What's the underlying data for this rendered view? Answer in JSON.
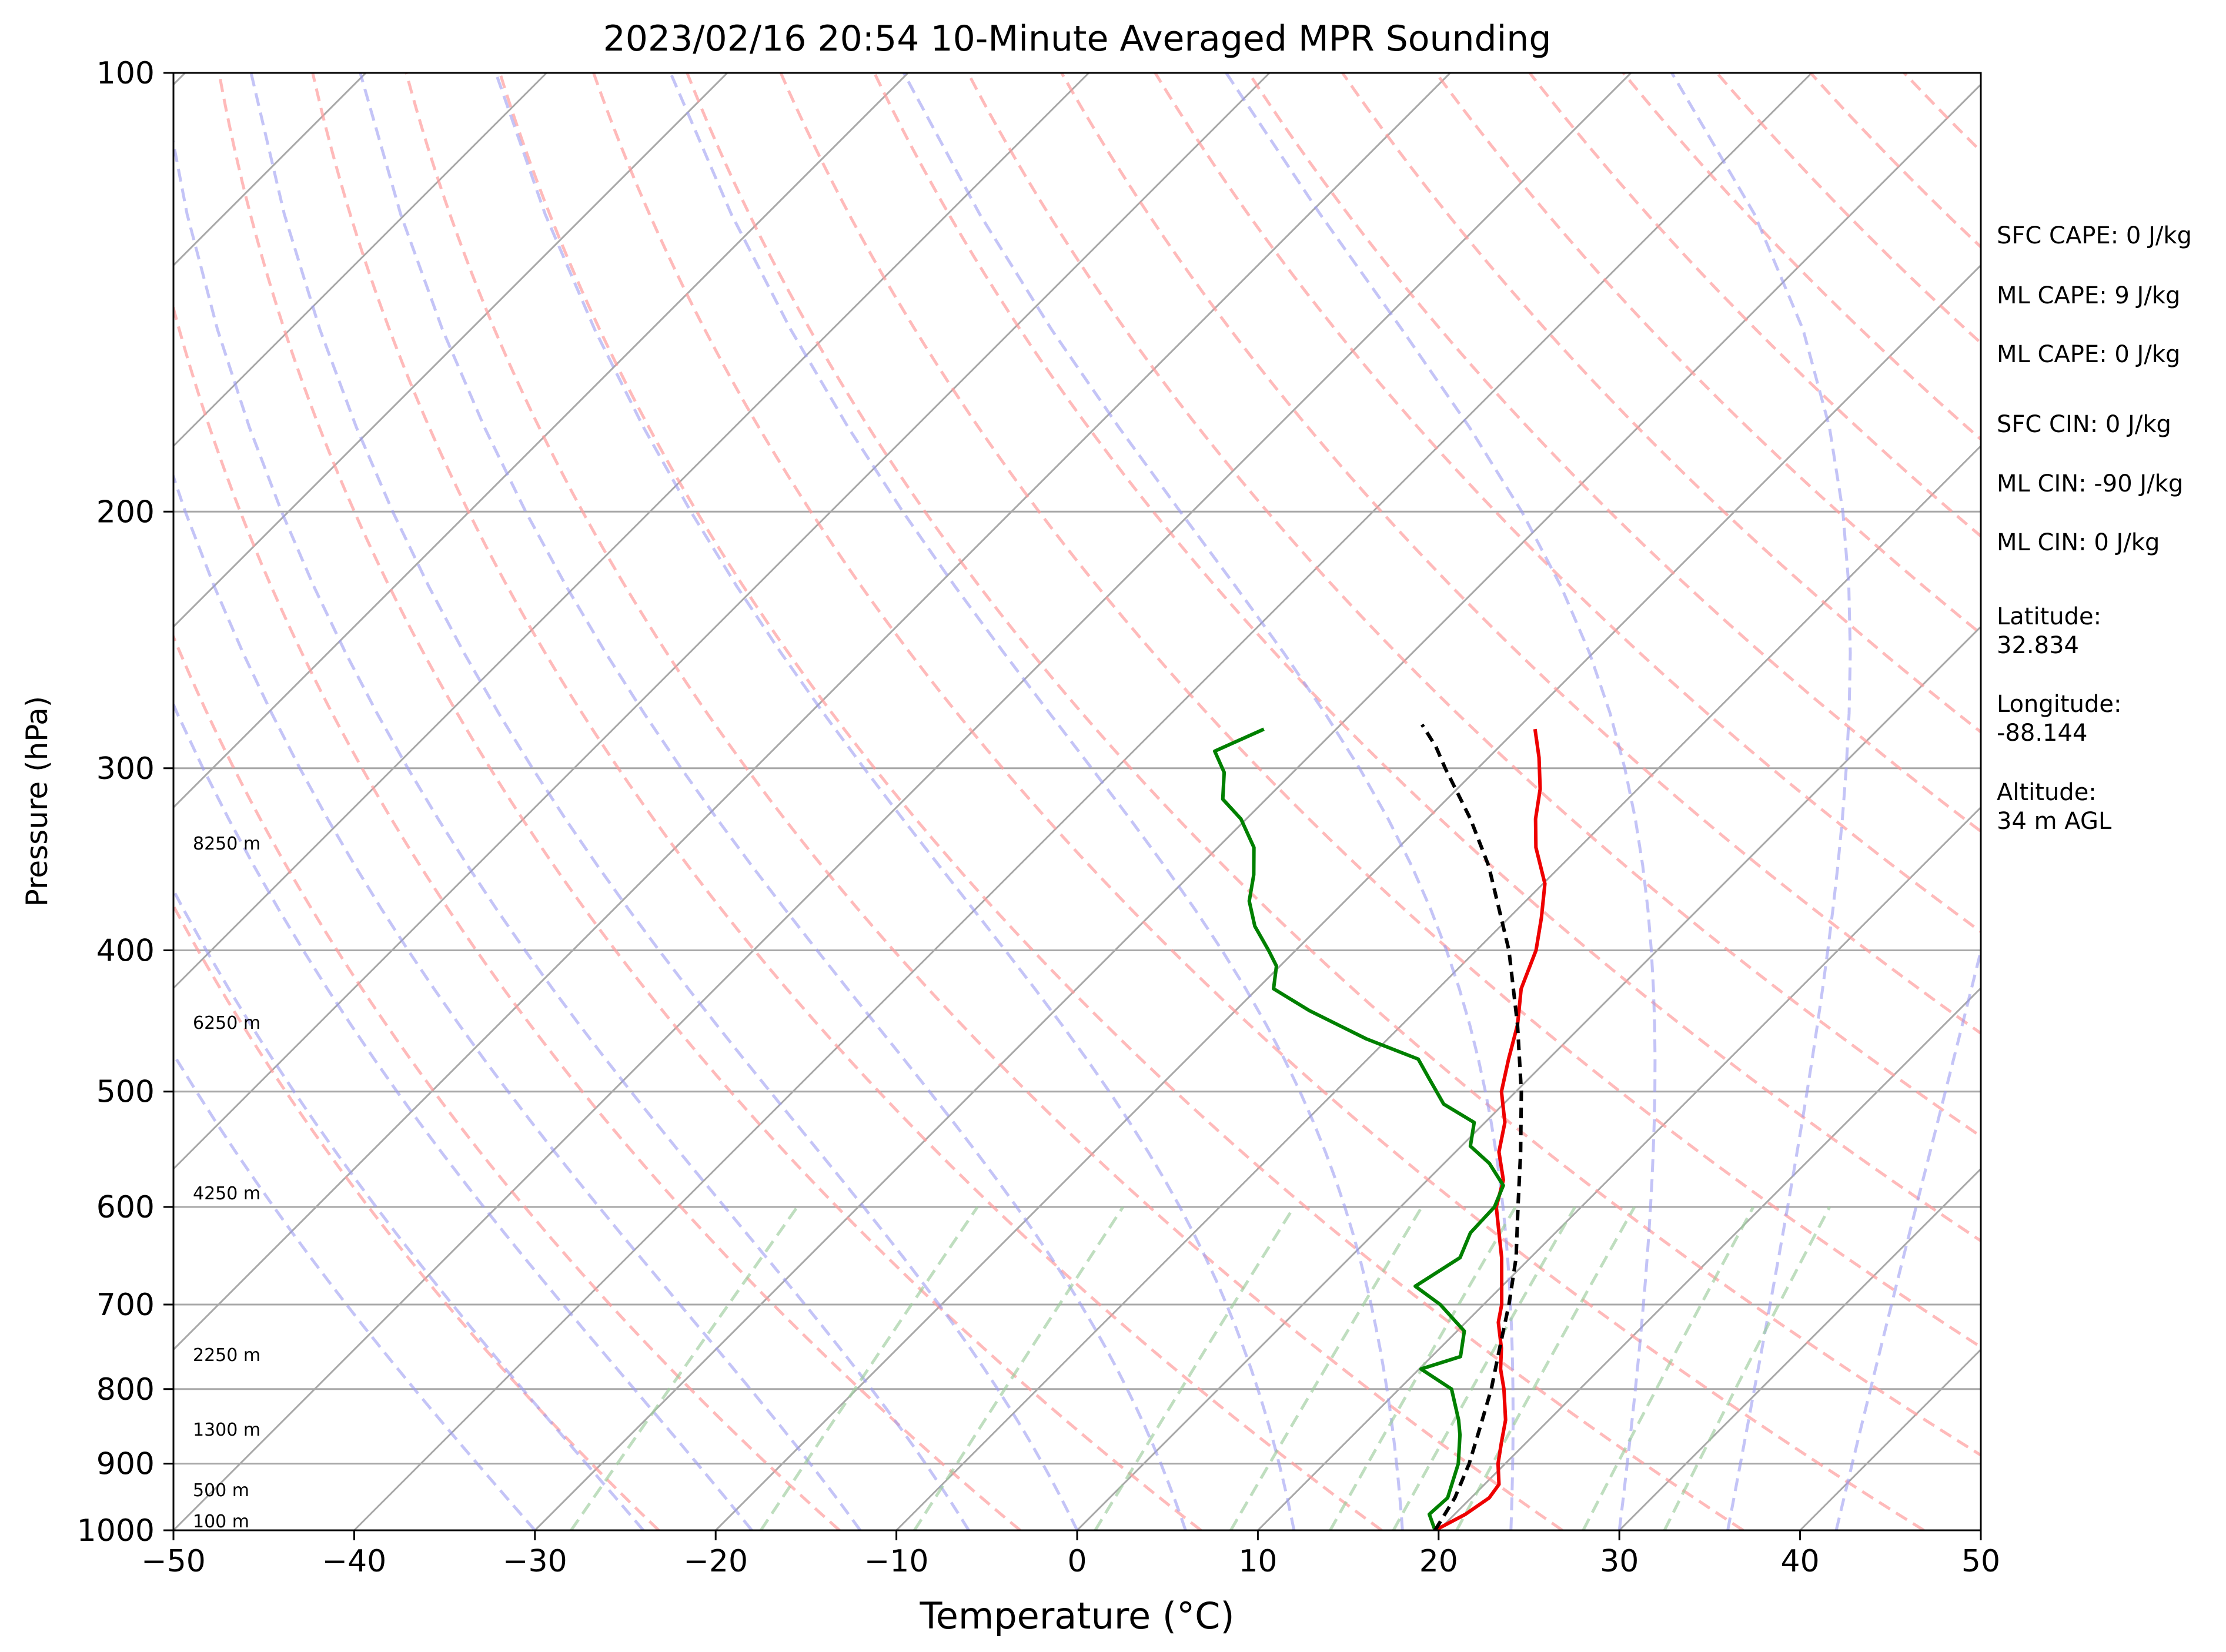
{
  "chart_data": {
    "type": "line",
    "subtype": "skew-t log-p",
    "title": "2023/02/16 20:54 10-Minute Averaged MPR Sounding",
    "xlabel": "Temperature (°C)",
    "ylabel": "Pressure (hPa)",
    "xlim": [
      -50,
      50
    ],
    "ylim": [
      1000,
      100
    ],
    "y_scale": "log",
    "x_ticks": [
      "−50",
      "−40",
      "−30",
      "−20",
      "−10",
      "0",
      "10",
      "20",
      "30",
      "40",
      "50"
    ],
    "y_ticks": [
      "100",
      "200",
      "300",
      "400",
      "500",
      "600",
      "700",
      "800",
      "900",
      "1000"
    ],
    "grid": true,
    "height_labels": [
      "8250 m",
      "6250 m",
      "4250 m",
      "2250 m",
      "1300 m",
      "500 m",
      "100 m"
    ],
    "series": [
      {
        "role": "temperature",
        "color": "#ee0000",
        "points": [
          [
            19.8,
            1000
          ],
          [
            20.6,
            975
          ],
          [
            21.0,
            950
          ],
          [
            20.8,
            930
          ],
          [
            19.6,
            900
          ],
          [
            18.6,
            870
          ],
          [
            17.6,
            840
          ],
          [
            15.8,
            800
          ],
          [
            14.5,
            775
          ],
          [
            13.4,
            750
          ],
          [
            11.8,
            720
          ],
          [
            11.0,
            700
          ],
          [
            8.4,
            650
          ],
          [
            5.3,
            600
          ],
          [
            4.2,
            575
          ],
          [
            2.4,
            550
          ],
          [
            1.1,
            525
          ],
          [
            -0.8,
            500
          ],
          [
            -2.2,
            475
          ],
          [
            -3.6,
            450
          ],
          [
            -5.4,
            425
          ],
          [
            -6.7,
            400
          ],
          [
            -8.2,
            380
          ],
          [
            -9.9,
            360
          ],
          [
            -12.4,
            340
          ],
          [
            -14.0,
            325
          ],
          [
            -15.4,
            310
          ],
          [
            -17.2,
            295
          ],
          [
            -19.0,
            282
          ]
        ]
      },
      {
        "role": "dewpoint",
        "color": "#008000",
        "points": [
          [
            19.8,
            1000
          ],
          [
            18.6,
            975
          ],
          [
            18.7,
            950
          ],
          [
            17.4,
            900
          ],
          [
            15.9,
            860
          ],
          [
            15.0,
            840
          ],
          [
            12.9,
            800
          ],
          [
            10.1,
            775
          ],
          [
            11.6,
            760
          ],
          [
            10.4,
            730
          ],
          [
            7.6,
            700
          ],
          [
            5.2,
            680
          ],
          [
            6.1,
            650
          ],
          [
            5.3,
            625
          ],
          [
            5.2,
            600
          ],
          [
            4.5,
            580
          ],
          [
            2.5,
            560
          ],
          [
            0.5,
            545
          ],
          [
            -0.6,
            525
          ],
          [
            -3.3,
            510
          ],
          [
            -5.5,
            490
          ],
          [
            -7.2,
            475
          ],
          [
            -11.2,
            460
          ],
          [
            -15.9,
            440
          ],
          [
            -19.1,
            425
          ],
          [
            -20.2,
            410
          ],
          [
            -21.5,
            400
          ],
          [
            -23.6,
            385
          ],
          [
            -25.3,
            370
          ],
          [
            -26.5,
            355
          ],
          [
            -28.0,
            340
          ],
          [
            -30.3,
            325
          ],
          [
            -32.4,
            315
          ],
          [
            -33.8,
            302
          ],
          [
            -35.5,
            292
          ],
          [
            -34.0,
            282
          ]
        ]
      },
      {
        "role": "parcel path",
        "color": "#000000",
        "dash": true,
        "points": [
          [
            19.8,
            1000
          ],
          [
            19.1,
            950
          ],
          [
            18.0,
            900
          ],
          [
            16.6,
            850
          ],
          [
            15.1,
            800
          ],
          [
            13.3,
            750
          ],
          [
            11.4,
            700
          ],
          [
            9.2,
            650
          ],
          [
            6.5,
            600
          ],
          [
            3.6,
            550
          ],
          [
            0.3,
            500
          ],
          [
            -3.6,
            450
          ],
          [
            -8.2,
            400
          ],
          [
            -11.0,
            375
          ],
          [
            -14.0,
            350
          ],
          [
            -17.6,
            325
          ],
          [
            -21.8,
            300
          ],
          [
            -23.5,
            290
          ],
          [
            -25.5,
            280
          ]
        ]
      }
    ],
    "reference_lines": {
      "dry_adiabats_theta_K": [
        250,
        260,
        270,
        280,
        290,
        300,
        310,
        320,
        330,
        340,
        350,
        360,
        370,
        380,
        390,
        400,
        410,
        420,
        430,
        440,
        450,
        460,
        470,
        480,
        490,
        500
      ],
      "moist_adiabats_start_C_at_1000": [
        -30,
        -24,
        -18,
        -12,
        -6,
        0,
        6,
        12,
        18,
        24,
        30,
        36,
        42
      ],
      "mixing_ratio_surface_temp_C": [
        -28,
        -17.5,
        -9,
        1,
        8.5,
        14,
        17.5,
        21,
        28,
        32.5
      ]
    },
    "annotations": [
      "SFC CAPE: 0 J/kg",
      "ML CAPE: 9 J/kg",
      "ML CAPE: 0 J/kg",
      "SFC CIN: 0 J/kg",
      "ML CIN: -90 J/kg",
      "ML CIN: 0 J/kg",
      "Latitude:",
      "32.834",
      "Longitude:",
      "-88.144",
      "Altitude:",
      "34 m AGL"
    ]
  }
}
